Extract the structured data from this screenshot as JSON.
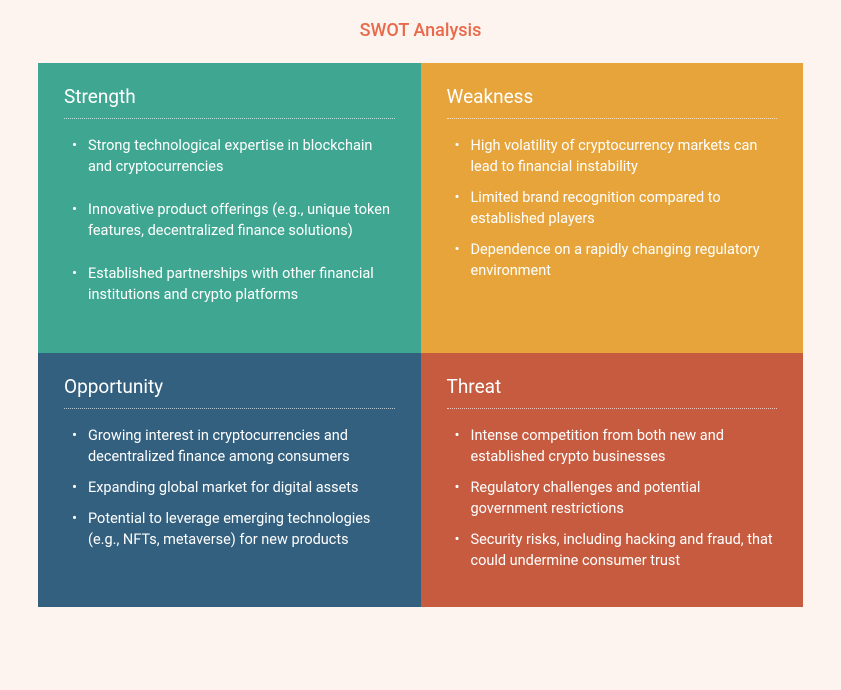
{
  "title": "SWOT Analysis",
  "page_background": "#fdf4f0",
  "title_color": "#e86a4a",
  "text_color": "#ffffff",
  "quadrants": [
    {
      "key": "strength",
      "heading": "Strength",
      "background": "#3fa791",
      "spaced": true,
      "items": [
        "Strong technological expertise in blockchain and cryptocurrencies",
        "Innovative product offerings (e.g., unique token features, decentralized finance solutions)",
        "Established partnerships with other financial institutions and crypto platforms"
      ]
    },
    {
      "key": "weakness",
      "heading": "Weakness",
      "background": "#e6a43b",
      "spaced": false,
      "items": [
        "High volatility of cryptocurrency markets can lead to financial instability",
        "Limited brand recognition compared to established players",
        "Dependence on a rapidly changing regulatory environment"
      ]
    },
    {
      "key": "opportunity",
      "heading": "Opportunity",
      "background": "#33607f",
      "spaced": false,
      "items": [
        "Growing interest in cryptocurrencies and decentralized finance among consumers",
        "Expanding global market for digital assets",
        "Potential to leverage emerging technologies (e.g., NFTs, metaverse) for new products"
      ]
    },
    {
      "key": "threat",
      "heading": "Threat",
      "background": "#c65b3f",
      "spaced": false,
      "items": [
        "Intense competition from both new and established crypto businesses",
        "Regulatory challenges and potential government restrictions",
        "Security risks, including hacking and fraud, that could undermine consumer trust"
      ]
    }
  ]
}
